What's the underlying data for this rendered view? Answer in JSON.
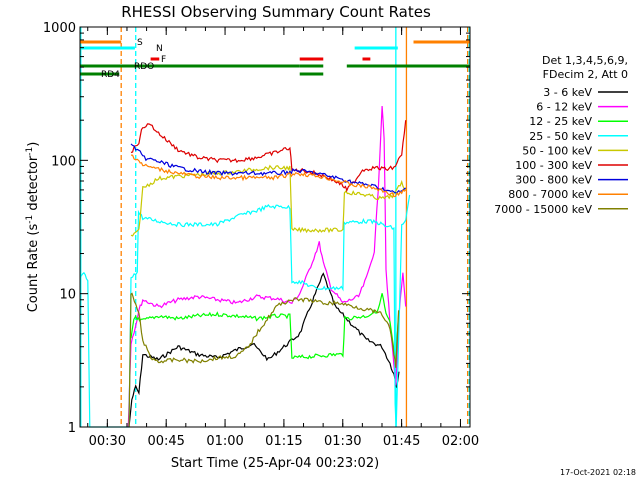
{
  "chart_data": {
    "type": "line",
    "title": "RHESSI Observing Summary Count Rates",
    "xlabel": "Start Time (25-Apr-04 00:23:02)",
    "ylabel_main": "Count Rate (s",
    "ylabel_sup1": "-1",
    "ylabel_mid": " detector",
    "ylabel_sup2": "-1",
    "ylabel_end": ")",
    "timestamp": "17-Oct-2021 02:18",
    "x_unit": "minutes after 00:23:02",
    "xlim": [
      0,
      99.4
    ],
    "ylim": [
      1,
      1000
    ],
    "yscale": "log",
    "x_ticks": [
      {
        "label": "00:30",
        "x": 6.97
      },
      {
        "label": "00:45",
        "x": 21.97
      },
      {
        "label": "01:00",
        "x": 36.97
      },
      {
        "label": "01:15",
        "x": 51.97
      },
      {
        "label": "01:30",
        "x": 66.97
      },
      {
        "label": "01:45",
        "x": 81.97
      },
      {
        "label": "02:00",
        "x": 96.97
      }
    ],
    "y_ticks": [
      {
        "label": "1",
        "y": 1
      },
      {
        "label": "10",
        "y": 10
      },
      {
        "label": "100",
        "y": 100
      },
      {
        "label": "1000",
        "y": 1000
      }
    ],
    "legend_header": [
      "Det 1,3,4,5,6,9,",
      "FDecim 2, Att 0"
    ],
    "legend_position": "right",
    "series": [
      {
        "name": "3 - 6 keV",
        "color": "#000000",
        "points": [
          [
            12.5,
            1
          ],
          [
            13.2,
            1.6
          ],
          [
            14.2,
            2.0
          ],
          [
            15.0,
            1.8
          ],
          [
            16.0,
            3.5
          ],
          [
            20,
            3.2
          ],
          [
            25,
            4.0
          ],
          [
            30,
            3.5
          ],
          [
            35,
            3.3
          ],
          [
            40,
            3.8
          ],
          [
            44,
            4.2
          ],
          [
            48,
            3.2
          ],
          [
            52,
            4.0
          ],
          [
            56,
            5.0
          ],
          [
            60,
            10
          ],
          [
            62,
            14
          ],
          [
            65,
            8
          ],
          [
            69,
            6
          ],
          [
            73,
            4.5
          ],
          [
            77,
            4.0
          ],
          [
            79,
            3.0
          ],
          [
            80,
            2.5
          ],
          [
            80.7,
            2.0
          ],
          [
            81.3,
            2.6
          ]
        ]
      },
      {
        "name": "6 - 12 keV",
        "color": "#ff00ff",
        "points": [
          [
            12.3,
            1
          ],
          [
            13.0,
            4.3
          ],
          [
            14.2,
            5.8
          ],
          [
            15.0,
            7.5
          ],
          [
            16.0,
            9.0
          ],
          [
            20,
            8.0
          ],
          [
            25,
            9.0
          ],
          [
            30,
            9.5
          ],
          [
            35,
            9.0
          ],
          [
            40,
            8.5
          ],
          [
            45,
            9.5
          ],
          [
            50,
            9.2
          ],
          [
            54,
            8.5
          ],
          [
            56,
            10
          ],
          [
            58,
            14
          ],
          [
            60,
            20
          ],
          [
            61,
            24
          ],
          [
            62,
            17
          ],
          [
            64,
            11
          ],
          [
            67,
            8.5
          ],
          [
            69,
            9
          ],
          [
            71,
            9.5
          ],
          [
            73,
            13
          ],
          [
            75,
            21
          ],
          [
            76,
            60
          ],
          [
            77,
            260
          ],
          [
            77.5,
            150
          ],
          [
            78,
            15
          ],
          [
            79,
            6
          ],
          [
            80,
            3
          ],
          [
            80.5,
            2.0
          ],
          [
            81.3,
            7
          ],
          [
            82.3,
            14
          ],
          [
            83,
            8
          ]
        ]
      },
      {
        "name": "12 - 25 keV",
        "color": "#00ff00",
        "points": [
          [
            13.0,
            4.5
          ],
          [
            13.7,
            6.4
          ],
          [
            14.2,
            6.8
          ],
          [
            15.2,
            6.2
          ],
          [
            20,
            6.8
          ],
          [
            25,
            6.5
          ],
          [
            30,
            6.8
          ],
          [
            35,
            7.0
          ],
          [
            40,
            6.8
          ],
          [
            45,
            6.5
          ],
          [
            50,
            6.8
          ],
          [
            53.5,
            6.8
          ],
          [
            54,
            3.3
          ],
          [
            60,
            3.4
          ],
          [
            65,
            3.5
          ],
          [
            67,
            3.5
          ],
          [
            67.5,
            6.5
          ],
          [
            73,
            6.8
          ],
          [
            76,
            7.5
          ],
          [
            77,
            10
          ],
          [
            78,
            7
          ],
          [
            79,
            6
          ],
          [
            80.5,
            3.0
          ],
          [
            81.2,
            7
          ]
        ]
      },
      {
        "name": "25 - 50 keV",
        "color": "#00ffff",
        "points": [
          [
            0,
            13
          ],
          [
            1,
            14
          ],
          [
            2,
            12.5
          ],
          [
            2.5,
            1
          ],
          [
            12.5,
            1
          ],
          [
            13,
            13
          ],
          [
            14.2,
            14
          ],
          [
            14.6,
            15
          ],
          [
            14.9,
            41
          ],
          [
            16.0,
            37
          ],
          [
            20,
            35
          ],
          [
            25,
            33
          ],
          [
            30,
            33
          ],
          [
            35,
            33
          ],
          [
            40,
            38
          ],
          [
            45,
            42
          ],
          [
            48,
            45
          ],
          [
            52,
            45
          ],
          [
            53.5,
            44
          ],
          [
            54,
            12.5
          ],
          [
            57,
            12
          ],
          [
            60,
            11
          ],
          [
            63,
            11
          ],
          [
            67,
            11
          ],
          [
            67.3,
            34
          ],
          [
            73,
            35
          ],
          [
            76,
            34
          ],
          [
            77,
            33
          ],
          [
            78,
            32
          ],
          [
            80,
            31
          ],
          [
            80.3,
            1.5
          ],
          [
            80.6,
            1
          ],
          [
            82,
            33
          ],
          [
            83,
            35
          ],
          [
            84,
            55
          ]
        ]
      },
      {
        "name": "50 - 100 keV",
        "color": "#c8c800",
        "points": [
          [
            13.0,
            27
          ],
          [
            14.2,
            28
          ],
          [
            15.0,
            30
          ],
          [
            16.0,
            62
          ],
          [
            20,
            73
          ],
          [
            25,
            76
          ],
          [
            30,
            78
          ],
          [
            35,
            80
          ],
          [
            40,
            82
          ],
          [
            45,
            86
          ],
          [
            48,
            88
          ],
          [
            52,
            88
          ],
          [
            53.5,
            88
          ],
          [
            54,
            30
          ],
          [
            60,
            30
          ],
          [
            65,
            30
          ],
          [
            67,
            30
          ],
          [
            67.4,
            58
          ],
          [
            73,
            55
          ],
          [
            76,
            52
          ],
          [
            78,
            52
          ],
          [
            80,
            55
          ],
          [
            82,
            68
          ],
          [
            83,
            60
          ]
        ]
      },
      {
        "name": "100 - 300 keV",
        "color": "#dd0000",
        "points": [
          [
            13.0,
            115
          ],
          [
            15.0,
            138
          ],
          [
            16,
            180
          ],
          [
            18,
            185
          ],
          [
            20,
            160
          ],
          [
            25,
            120
          ],
          [
            30,
            105
          ],
          [
            35,
            100
          ],
          [
            40,
            100
          ],
          [
            45,
            105
          ],
          [
            50,
            115
          ],
          [
            53.5,
            125
          ],
          [
            54,
            84
          ],
          [
            57,
            84
          ],
          [
            60,
            80
          ],
          [
            63,
            75
          ],
          [
            67,
            65
          ],
          [
            68,
            60
          ],
          [
            70,
            70
          ],
          [
            72,
            85
          ],
          [
            75,
            88
          ],
          [
            78,
            86
          ],
          [
            80,
            88
          ],
          [
            82,
            110
          ],
          [
            83,
            200
          ]
        ]
      },
      {
        "name": "300 - 800 keV",
        "color": "#0000dd",
        "points": [
          [
            13.0,
            130
          ],
          [
            15.0,
            118
          ],
          [
            16,
            105
          ],
          [
            20,
            98
          ],
          [
            25,
            88
          ],
          [
            30,
            83
          ],
          [
            35,
            80
          ],
          [
            40,
            80
          ],
          [
            45,
            80
          ],
          [
            50,
            80
          ],
          [
            53.5,
            82
          ],
          [
            55,
            84
          ],
          [
            58,
            82
          ],
          [
            62,
            78
          ],
          [
            66,
            73
          ],
          [
            70,
            68
          ],
          [
            74,
            65
          ],
          [
            78,
            60
          ],
          [
            80,
            57
          ],
          [
            82,
            58
          ],
          [
            83,
            62
          ]
        ]
      },
      {
        "name": "800 - 7000 keV",
        "color": "#ff8000",
        "points": [
          [
            13.0,
            110
          ],
          [
            15.0,
            100
          ],
          [
            16,
            92
          ],
          [
            20,
            86
          ],
          [
            25,
            80
          ],
          [
            30,
            76
          ],
          [
            35,
            74
          ],
          [
            40,
            74
          ],
          [
            45,
            74
          ],
          [
            50,
            74
          ],
          [
            53.5,
            78
          ],
          [
            55,
            80
          ],
          [
            58,
            78
          ],
          [
            62,
            75
          ],
          [
            66,
            70
          ],
          [
            70,
            65
          ],
          [
            74,
            63
          ],
          [
            78,
            58
          ],
          [
            80,
            55
          ],
          [
            82,
            57
          ],
          [
            83,
            60
          ]
        ]
      },
      {
        "name": "7000 - 15000 keV",
        "color": "#808000",
        "points": [
          [
            12.5,
            1
          ],
          [
            13.0,
            10
          ],
          [
            13.5,
            9.5
          ],
          [
            15,
            7
          ],
          [
            16,
            4.5
          ],
          [
            18,
            3.3
          ],
          [
            20,
            3.1
          ],
          [
            25,
            3.2
          ],
          [
            30,
            3.1
          ],
          [
            35,
            3.3
          ],
          [
            40,
            3.4
          ],
          [
            43,
            4.0
          ],
          [
            45,
            5.0
          ],
          [
            50,
            8.0
          ],
          [
            53.5,
            9.0
          ],
          [
            55,
            9.0
          ],
          [
            58,
            9.0
          ],
          [
            62,
            8.5
          ],
          [
            66,
            8.5
          ],
          [
            70,
            8.0
          ],
          [
            74,
            7.5
          ],
          [
            77,
            7.0
          ],
          [
            79,
            5.5
          ],
          [
            80,
            3.5
          ],
          [
            80.5,
            2.8
          ],
          [
            81.2,
            7.5
          ]
        ]
      }
    ],
    "flags": [
      {
        "label": "S",
        "color": "#ff8000",
        "segments": [
          [
            0,
            10.5
          ],
          [
            85,
            99.4
          ]
        ]
      },
      {
        "label": "N",
        "color": "#00ffff",
        "segments": [
          [
            0,
            14
          ],
          [
            70,
            81
          ]
        ]
      },
      {
        "label": "F",
        "color": "#ee0000",
        "segments": [
          [
            18,
            20.2
          ],
          [
            56,
            62
          ],
          [
            72,
            74
          ]
        ]
      },
      {
        "label": "RDO",
        "color": "#008000",
        "segments": [
          [
            0,
            56
          ],
          [
            56,
            62
          ],
          [
            68,
            99.4
          ]
        ]
      },
      {
        "label": "RD4",
        "color": "#008000",
        "segments": [
          [
            0,
            10
          ],
          [
            56,
            62
          ]
        ]
      }
    ],
    "markers": [
      {
        "color": "#00ffff",
        "style": "solid",
        "x": 0.2
      },
      {
        "color": "#ff8000",
        "style": "dashed",
        "x": 10.5
      },
      {
        "color": "#00ffff",
        "style": "dashed",
        "x": 14.2
      },
      {
        "color": "#00ffff",
        "style": "solid",
        "x": 80.5
      },
      {
        "color": "#ff8000",
        "style": "solid",
        "x": 83.2
      },
      {
        "color": "#ff8000",
        "style": "dashed",
        "x": 98.8
      },
      {
        "color": "#00ffff",
        "style": "dashed",
        "x": 99.2
      }
    ]
  }
}
